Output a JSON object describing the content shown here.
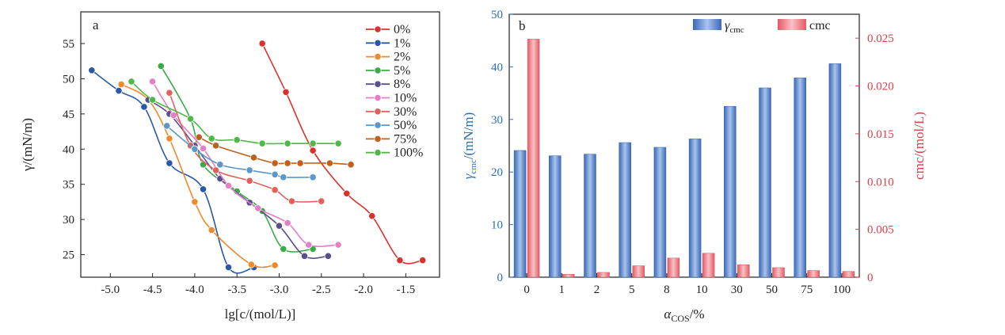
{
  "chart_data": [
    {
      "type": "line",
      "panel_label": "a",
      "xlabel": "lg[c/(mol/L)]",
      "ylabel": "γ/(mN/m)",
      "xlim": [
        -5.35,
        -1.1
      ],
      "ylim": [
        21.8,
        59.5
      ],
      "xticks": [
        "-5.0",
        "-4.5",
        "-4.0",
        "-3.5",
        "-3.0",
        "-2.5",
        "-2.0",
        "-1.5"
      ],
      "yticks": [
        "25",
        "30",
        "35",
        "40",
        "45",
        "50",
        "55"
      ],
      "legend_position": "top-right",
      "series": [
        {
          "name": "0%",
          "color": "#d9312b",
          "x": [
            -3.2,
            -2.92,
            -2.6,
            -2.2,
            -1.9,
            -1.57,
            -1.3
          ],
          "y": [
            55.0,
            48.1,
            39.8,
            33.7,
            30.5,
            24.2,
            24.2
          ]
        },
        {
          "name": "1%",
          "color": "#2a57a6",
          "x": [
            -5.22,
            -4.9,
            -4.6,
            -4.3,
            -3.9,
            -3.6,
            -3.3
          ],
          "y": [
            51.2,
            48.3,
            46.0,
            38.0,
            34.3,
            23.2,
            23.2
          ]
        },
        {
          "name": "2%",
          "color": "#ee8a2e",
          "x": [
            -4.87,
            -4.55,
            -4.3,
            -4.0,
            -3.8,
            -3.33,
            -3.05
          ],
          "y": [
            49.2,
            47.0,
            41.5,
            32.5,
            28.5,
            23.6,
            23.5
          ]
        },
        {
          "name": "5%",
          "color": "#3aab48",
          "x": [
            -4.4,
            -4.05,
            -3.9,
            -3.5,
            -3.2,
            -2.95,
            -2.6
          ],
          "y": [
            51.8,
            44.3,
            37.8,
            34.0,
            31.2,
            25.8,
            25.8
          ]
        },
        {
          "name": "8%",
          "color": "#5a4e8c",
          "x": [
            -4.55,
            -4.3,
            -4.0,
            -3.7,
            -3.35,
            -3.0,
            -2.7,
            -2.42
          ],
          "y": [
            47.0,
            45.0,
            40.5,
            35.8,
            32.4,
            29.1,
            24.8,
            24.8
          ]
        },
        {
          "name": "10%",
          "color": "#e47fc4",
          "x": [
            -4.5,
            -4.25,
            -3.9,
            -3.6,
            -3.25,
            -2.9,
            -2.65,
            -2.3
          ],
          "y": [
            49.6,
            44.8,
            40.1,
            34.8,
            31.6,
            29.5,
            26.4,
            26.4
          ]
        },
        {
          "name": "30%",
          "color": "#e0605a",
          "x": [
            -4.3,
            -4.05,
            -3.75,
            -3.35,
            -3.05,
            -2.85,
            -2.5
          ],
          "y": [
            48.0,
            40.5,
            37.0,
            35.5,
            34.2,
            32.6,
            32.6
          ]
        },
        {
          "name": "50%",
          "color": "#5c97c6",
          "x": [
            -4.33,
            -4.0,
            -3.7,
            -3.35,
            -3.05,
            -2.95,
            -2.6
          ],
          "y": [
            43.3,
            40.0,
            37.8,
            37.0,
            36.4,
            36.0,
            36.0
          ]
        },
        {
          "name": "75%",
          "color": "#c0601a",
          "x": [
            -3.95,
            -3.75,
            -3.3,
            -3.05,
            -2.9,
            -2.75,
            -2.4,
            -2.15
          ],
          "y": [
            41.7,
            40.5,
            38.8,
            38.0,
            38.0,
            38.0,
            38.0,
            37.8
          ]
        },
        {
          "name": "100%",
          "color": "#4fb848",
          "x": [
            -4.75,
            -4.5,
            -4.05,
            -3.8,
            -3.5,
            -3.2,
            -2.9,
            -2.6,
            -2.3
          ],
          "y": [
            49.6,
            47.0,
            44.3,
            41.5,
            41.3,
            40.8,
            40.8,
            40.8,
            40.8
          ]
        }
      ]
    },
    {
      "type": "bar",
      "panel_label": "b",
      "xlabel_main": "α",
      "xlabel_sub": "COS",
      "xlabel_tail": "/%",
      "categories": [
        "0",
        "1",
        "2",
        "5",
        "8",
        "10",
        "30",
        "50",
        "75",
        "100"
      ],
      "ylabel_left_main": "γ",
      "ylabel_left_sub": "cmc",
      "ylabel_left_tail": "/(mN/m)",
      "ylabel_right": "cmc/(mol/L)",
      "ylim_left": [
        0,
        50
      ],
      "ylim_right": [
        0,
        0.0275
      ],
      "yticks_left": [
        "0",
        "10",
        "20",
        "30",
        "40",
        "50"
      ],
      "yticks_right": [
        "0",
        "0.005",
        "0.010",
        "0.015",
        "0.020",
        "0.025"
      ],
      "legend_position": "top",
      "series": [
        {
          "name_main": "γ",
          "name_sub": "cmc",
          "axis": "left",
          "color": "#4a7fcf",
          "values": [
            24.1,
            23.1,
            23.4,
            25.6,
            24.7,
            26.3,
            32.5,
            36.0,
            37.9,
            40.6
          ]
        },
        {
          "name": "cmc",
          "axis": "right",
          "color": "#e7767d",
          "values": [
            0.0249,
            0.0003,
            0.0005,
            0.0012,
            0.002,
            0.0025,
            0.0013,
            0.001,
            0.0007,
            0.0006
          ]
        }
      ]
    }
  ]
}
